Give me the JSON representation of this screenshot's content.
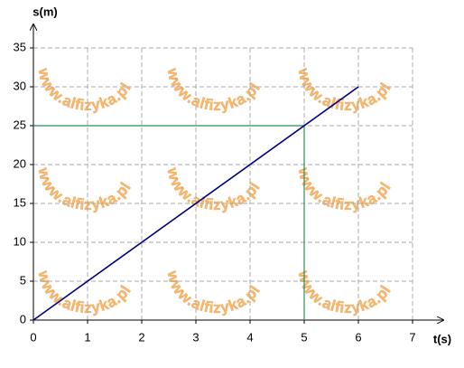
{
  "chart_data": {
    "type": "line",
    "x_label": "t(s)",
    "y_label": "s(m)",
    "x": [
      0,
      6
    ],
    "series": [
      {
        "color": "#000080",
        "values": [
          0,
          30
        ]
      }
    ],
    "guides": {
      "x": 5,
      "y": 25,
      "color": "#2e8b57"
    },
    "xlim": [
      0,
      7
    ],
    "xticks": [
      0,
      1,
      2,
      3,
      4,
      5,
      6,
      7
    ],
    "ylim": [
      0,
      35
    ],
    "yticks": [
      0,
      5,
      10,
      15,
      20,
      25,
      30,
      35
    ],
    "grid": true,
    "watermark": "www.alfizyka.pl"
  }
}
